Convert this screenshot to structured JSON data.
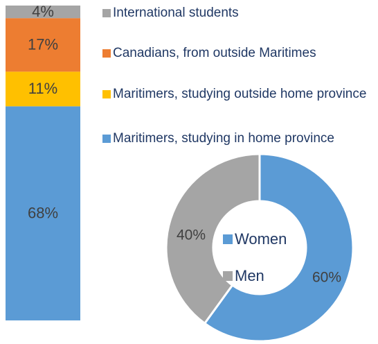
{
  "chart_data": [
    {
      "type": "stacked-bar",
      "series": [
        {
          "name": "Maritimers, studying in home province",
          "color": "#5b9bd5",
          "values": [
            68
          ],
          "value_labels": [
            "68%"
          ]
        },
        {
          "name": "Maritimers, studying outside home province",
          "color": "#ffc000",
          "values": [
            11
          ],
          "value_labels": [
            "11%"
          ]
        },
        {
          "name": "Canadians, from outside Maritimes",
          "color": "#ed7d31",
          "values": [
            17
          ],
          "value_labels": [
            "17%"
          ]
        },
        {
          "name": "International students",
          "color": "#a5a5a5",
          "values": [
            4
          ],
          "value_labels": [
            "4%"
          ]
        }
      ],
      "ylim": [
        0,
        100
      ]
    },
    {
      "type": "donut",
      "categories": [
        "Women",
        "Men"
      ],
      "values": [
        60,
        40
      ],
      "value_labels": [
        "60%",
        "40%"
      ],
      "colors": [
        "#5b9bd5",
        "#a5a5a5"
      ]
    }
  ]
}
